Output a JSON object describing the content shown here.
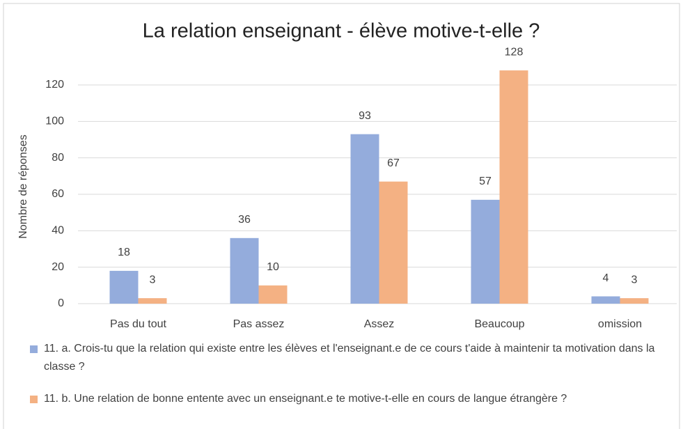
{
  "chart_data": {
    "type": "bar",
    "title": "La relation enseignant - élève motive-t-elle ?",
    "y_label": "Nombre de réponses",
    "categories": [
      "Pas du tout",
      "Pas assez",
      "Assez",
      "Beaucoup",
      "omission"
    ],
    "series": [
      {
        "name": "11. a. Crois-tu que la relation qui existe entre les élèves et l'enseignant.e de ce cours t'aide à maintenir ta motivation dans la classe ?",
        "color": "#94acdc",
        "values": [
          18,
          36,
          93,
          57,
          4
        ]
      },
      {
        "name": "11. b. Une relation de bonne entente avec un enseignant.e te motive-t-elle en cours de langue étrangère ?",
        "color": "#f4b183",
        "values": [
          3,
          10,
          67,
          128,
          3
        ]
      }
    ],
    "ylim": [
      0,
      140
    ],
    "yticks": [
      0,
      20,
      40,
      60,
      80,
      100,
      120
    ],
    "grid": true,
    "legend": "bottom"
  }
}
